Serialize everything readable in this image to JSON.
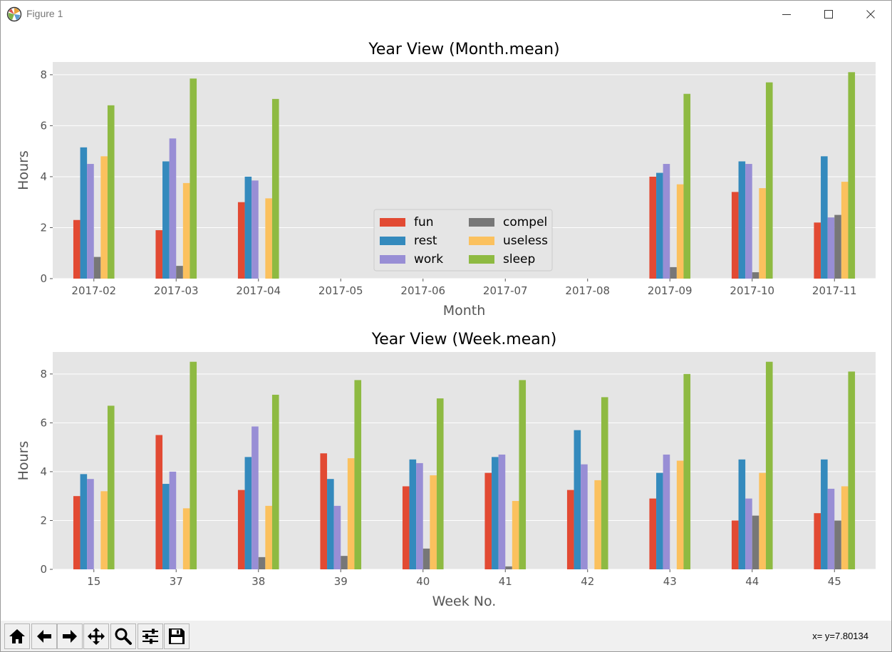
{
  "window": {
    "title": "Figure 1",
    "icons": {
      "app": "matplotlib-icon",
      "minimize": "minimize-icon",
      "maximize": "maximize-icon",
      "close": "close-icon"
    }
  },
  "toolbar": {
    "buttons": [
      {
        "name": "home-button",
        "icon": "home-icon"
      },
      {
        "name": "back-button",
        "icon": "back-arrow-icon"
      },
      {
        "name": "forward-button",
        "icon": "forward-arrow-icon"
      },
      {
        "name": "pan-button",
        "icon": "move-arrows-icon"
      },
      {
        "name": "zoom-button",
        "icon": "magnifier-icon"
      },
      {
        "name": "configure-subplots-button",
        "icon": "sliders-icon"
      },
      {
        "name": "save-button",
        "icon": "floppy-disk-icon"
      }
    ],
    "coordinates": "x= y=7.80134"
  },
  "colors": {
    "fun": "#E24A33",
    "rest": "#348ABD",
    "work": "#988ED5",
    "compel": "#777777",
    "useless": "#FBC15E",
    "sleep": "#8EBA42",
    "axes_bg": "#E5E5E5",
    "grid": "#FFFFFF",
    "tick_text": "#555555"
  },
  "chart_data": [
    {
      "type": "bar",
      "title": "Year View (Month.mean)",
      "xlabel": "Month",
      "ylabel": "Hours",
      "ylim": [
        0,
        8.5
      ],
      "yticks": [
        0,
        2,
        4,
        6,
        8
      ],
      "grid": true,
      "legend": "lower-center",
      "legend_columns": 2,
      "categories": [
        "2017-02",
        "2017-03",
        "2017-04",
        "2017-05",
        "2017-06",
        "2017-07",
        "2017-08",
        "2017-09",
        "2017-10",
        "2017-11"
      ],
      "series": [
        {
          "name": "fun",
          "color": "#E24A33",
          "values": [
            2.3,
            1.9,
            3.0,
            0,
            0,
            0,
            0,
            4.0,
            3.4,
            2.2
          ]
        },
        {
          "name": "rest",
          "color": "#348ABD",
          "values": [
            5.15,
            4.6,
            4.0,
            0,
            0,
            0,
            0,
            4.15,
            4.6,
            4.8
          ]
        },
        {
          "name": "work",
          "color": "#988ED5",
          "values": [
            4.5,
            5.5,
            3.85,
            0,
            0,
            0,
            0,
            4.5,
            4.5,
            2.4
          ]
        },
        {
          "name": "compel",
          "color": "#777777",
          "values": [
            0.85,
            0.5,
            0,
            0,
            0,
            0,
            0,
            0.45,
            0.25,
            2.5
          ]
        },
        {
          "name": "useless",
          "color": "#FBC15E",
          "values": [
            4.8,
            3.75,
            3.15,
            0,
            0,
            0,
            0,
            3.7,
            3.55,
            3.8
          ]
        },
        {
          "name": "sleep",
          "color": "#8EBA42",
          "values": [
            6.8,
            7.85,
            7.05,
            0,
            0,
            0,
            0,
            7.25,
            7.7,
            8.1
          ]
        }
      ]
    },
    {
      "type": "bar",
      "title": "Year View (Week.mean)",
      "xlabel": "Week No.",
      "ylabel": "Hours",
      "ylim": [
        0,
        8.9
      ],
      "yticks": [
        0,
        2,
        4,
        6,
        8
      ],
      "grid": true,
      "categories": [
        "15",
        "37",
        "38",
        "39",
        "40",
        "41",
        "42",
        "43",
        "44",
        "45"
      ],
      "series": [
        {
          "name": "fun",
          "color": "#E24A33",
          "values": [
            3.0,
            5.5,
            3.25,
            4.75,
            3.4,
            3.95,
            3.25,
            2.9,
            2.0,
            2.3
          ]
        },
        {
          "name": "rest",
          "color": "#348ABD",
          "values": [
            3.9,
            3.5,
            4.6,
            3.7,
            4.5,
            4.6,
            5.7,
            3.95,
            4.5,
            4.5
          ]
        },
        {
          "name": "work",
          "color": "#988ED5",
          "values": [
            3.7,
            4.0,
            5.85,
            2.6,
            4.35,
            4.7,
            4.3,
            4.7,
            2.9,
            3.3
          ]
        },
        {
          "name": "compel",
          "color": "#777777",
          "values": [
            0,
            0,
            0.5,
            0.55,
            0.85,
            0.12,
            0,
            0,
            2.2,
            2.0
          ]
        },
        {
          "name": "useless",
          "color": "#FBC15E",
          "values": [
            3.2,
            2.5,
            2.6,
            4.55,
            3.85,
            2.8,
            3.65,
            4.45,
            3.95,
            3.4
          ]
        },
        {
          "name": "sleep",
          "color": "#8EBA42",
          "values": [
            6.7,
            8.5,
            7.15,
            7.75,
            7.0,
            7.75,
            7.05,
            8.0,
            8.5,
            8.1
          ]
        }
      ]
    }
  ]
}
